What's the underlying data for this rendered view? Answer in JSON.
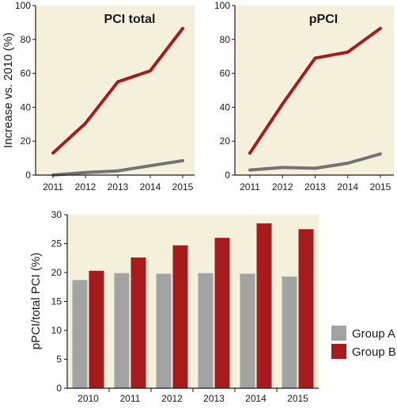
{
  "colors": {
    "background": "#f5f0dc",
    "group_a": "#a3a3a3",
    "group_b": "#a61b1b",
    "line_a": "#737373",
    "line_b": "#a61b1b"
  },
  "chart_data": [
    {
      "type": "line",
      "title": "PCI total",
      "ylabel": "Increase vs. 2010 (%)",
      "xlabel": "",
      "x": [
        "2011",
        "2012",
        "2013",
        "2014",
        "2015"
      ],
      "ylim": [
        0,
        100
      ],
      "yticks": [
        0,
        20,
        40,
        60,
        80,
        100
      ],
      "series": [
        {
          "values": [
            0,
            1.5,
            2.5,
            5.5,
            8.5
          ]
        },
        {
          "values": [
            13,
            30.5,
            55,
            61.5,
            86.5
          ]
        }
      ]
    },
    {
      "type": "line",
      "title": "pPCI",
      "ylabel": "",
      "xlabel": "",
      "x": [
        "2011",
        "2012",
        "2013",
        "2014",
        "2015"
      ],
      "ylim": [
        0,
        100
      ],
      "yticks": [
        0,
        20,
        40,
        60,
        80,
        100
      ],
      "series": [
        {
          "values": [
            3,
            4.5,
            4,
            7,
            12.5
          ]
        },
        {
          "values": [
            13,
            42,
            69,
            72.5,
            86.5
          ]
        }
      ]
    },
    {
      "type": "bar",
      "title": "",
      "ylabel": "pPCI/total PCI (%)",
      "xlabel": "",
      "categories": [
        "2010",
        "2011",
        "2012",
        "2013",
        "2014",
        "2015"
      ],
      "ylim": [
        0,
        30
      ],
      "yticks": [
        0,
        5,
        10,
        15,
        20,
        25,
        30
      ],
      "legend": "right",
      "series": [
        {
          "name": "Group A",
          "values": [
            18.7,
            19.9,
            19.8,
            19.9,
            19.8,
            19.3
          ]
        },
        {
          "name": "Group B",
          "values": [
            20.3,
            22.6,
            24.7,
            26.0,
            28.5,
            27.5
          ]
        }
      ]
    }
  ]
}
